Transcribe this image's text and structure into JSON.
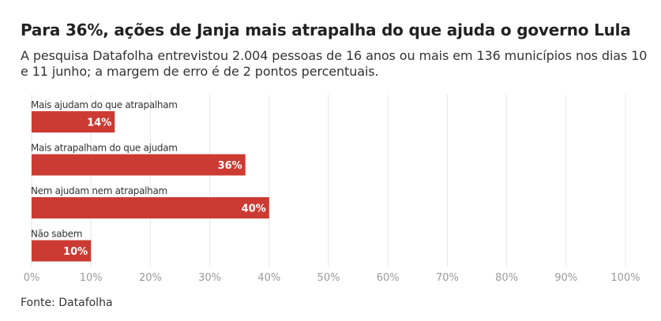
{
  "title": "Para 36%, ações de Janja mais atrapalha do que ajuda o governo Lula",
  "subtitle": "A pesquisa Datafolha entrevistou 2.004 pessoas de 16 anos ou mais em 136 municípios nos dias 10 e 11 junho; a margem de erro é de 2 pontos percentuais.",
  "source": "Fonte: Datafolha",
  "chart_data": {
    "type": "bar",
    "orientation": "horizontal",
    "categories": [
      "Mais ajudam do que atrapalham",
      "Mais atrapalham do que ajudam",
      "Nem ajudam nem atrapalham",
      "Não sabem"
    ],
    "values": [
      14,
      36,
      40,
      10
    ],
    "value_labels": [
      "14%",
      "36%",
      "40%",
      "10%"
    ],
    "xlim": [
      0,
      100
    ],
    "ticks": [
      0,
      10,
      20,
      30,
      40,
      50,
      60,
      70,
      80,
      90,
      100
    ],
    "tick_labels": [
      "0%",
      "10%",
      "20%",
      "30%",
      "40%",
      "50%",
      "60%",
      "70%",
      "80%",
      "90%",
      "100%"
    ],
    "grid": true,
    "bar_color": "#cc3b33",
    "grid_color": "#e6e6e6"
  }
}
